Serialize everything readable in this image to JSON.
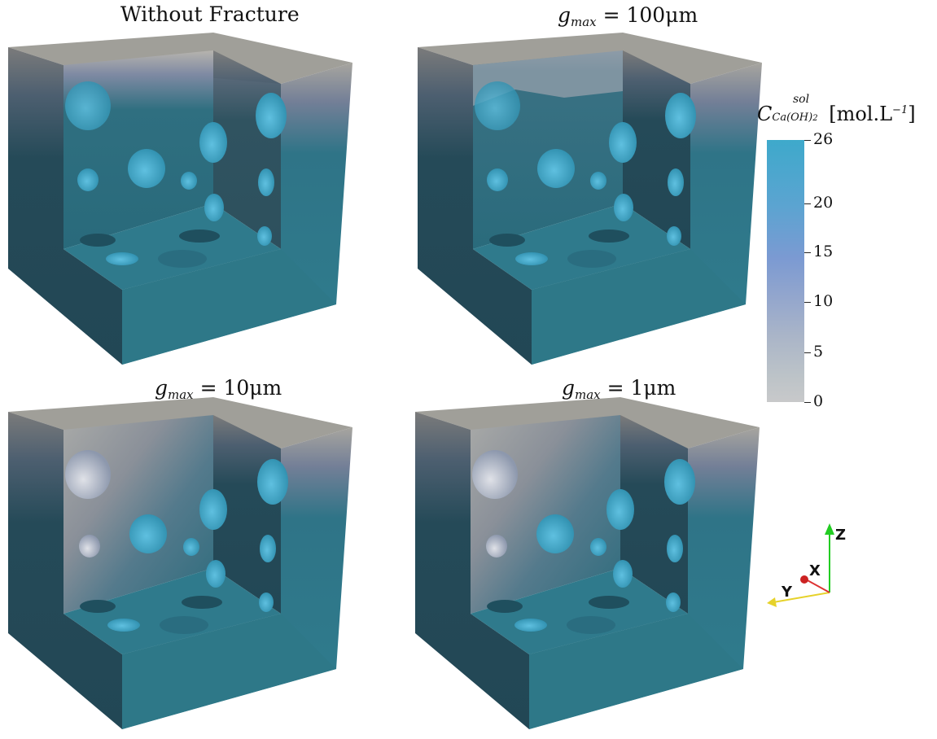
{
  "panels": [
    {
      "title_text": "Without Fracture"
    },
    {
      "title_var": "g",
      "title_sub": "max",
      "title_rest": " = 100μm"
    },
    {
      "title_var": "g",
      "title_sub": "max",
      "title_rest": " = 10μm"
    },
    {
      "title_var": "g",
      "title_sub": "max",
      "title_rest": " = 1μm"
    }
  ],
  "colorbar": {
    "symbol": "C",
    "superscript": "sol",
    "subscript": "Ca(OH)",
    "subscript_index": "2",
    "units": "[mol.L",
    "units_exp": "−1",
    "units_close": "]",
    "ticks": [
      "26",
      "20",
      "15",
      "10",
      "5",
      "0"
    ],
    "range": [
      0,
      26
    ],
    "colors": {
      "high": "#3ea9cb",
      "mid": "#7b9ad2",
      "low": "#c8c9ca"
    }
  },
  "axes": {
    "x": "X",
    "y": "Y",
    "z": "Z"
  }
}
